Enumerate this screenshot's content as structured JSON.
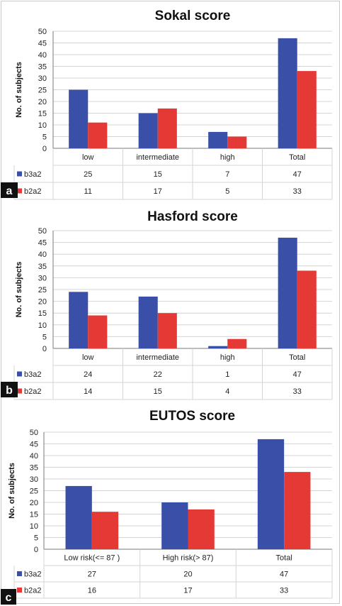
{
  "colors": {
    "b3a2": "#3a4fa8",
    "b2a2": "#e53935",
    "grid": "#d4d4d4",
    "axis": "#7a7a7a",
    "panel_label_bg": "#111111"
  },
  "chart_data": [
    {
      "type": "bar",
      "panel_label": "a",
      "title": "Sokal score",
      "ylabel": "No. of subjects",
      "ylim": [
        0,
        50
      ],
      "yticks": [
        0,
        5,
        10,
        15,
        20,
        25,
        30,
        35,
        40,
        45,
        50
      ],
      "grid": true,
      "categories": [
        "low",
        "intermediate",
        "high",
        "Total"
      ],
      "series": [
        {
          "name": "b3a2",
          "values": [
            25,
            15,
            7,
            47
          ]
        },
        {
          "name": "b2a2",
          "values": [
            11,
            17,
            5,
            33
          ]
        }
      ]
    },
    {
      "type": "bar",
      "panel_label": "b",
      "title": "Hasford score",
      "ylabel": "No. of subjects",
      "ylim": [
        0,
        50
      ],
      "yticks": [
        0,
        5,
        10,
        15,
        20,
        25,
        30,
        35,
        40,
        45,
        50
      ],
      "grid": true,
      "categories": [
        "low",
        "intermediate",
        "high",
        "Total"
      ],
      "series": [
        {
          "name": "b3a2",
          "values": [
            24,
            22,
            1,
            47
          ]
        },
        {
          "name": "b2a2",
          "values": [
            14,
            15,
            4,
            33
          ]
        }
      ]
    },
    {
      "type": "bar",
      "panel_label": "c",
      "title": "EUTOS score",
      "ylabel": "No. of subjects",
      "ylim": [
        0,
        50
      ],
      "yticks": [
        0,
        5,
        10,
        15,
        20,
        25,
        30,
        35,
        40,
        45,
        50
      ],
      "grid": true,
      "categories": [
        "Low risk(<= 87 )",
        "High risk(> 87)",
        "Total"
      ],
      "series": [
        {
          "name": "b3a2",
          "values": [
            27,
            20,
            47
          ]
        },
        {
          "name": "b2a2",
          "values": [
            16,
            17,
            33
          ]
        }
      ]
    }
  ]
}
